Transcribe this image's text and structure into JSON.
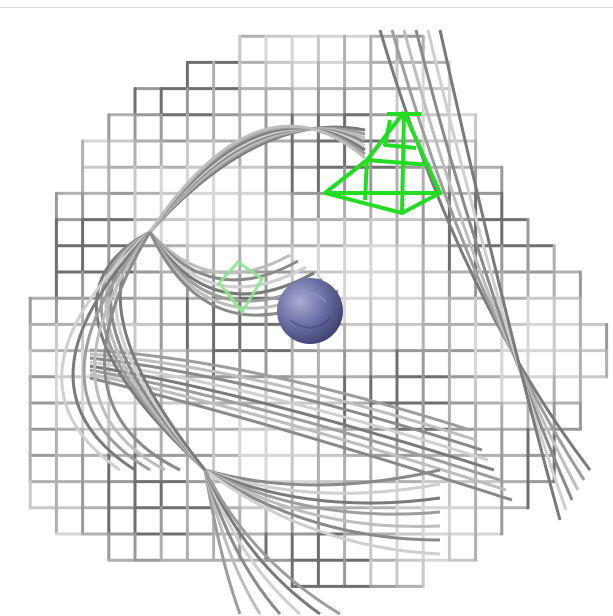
{
  "scene": {
    "background": "#ffffff",
    "mesh_dark": "#6f6f6f",
    "mesh_mid": "#9a9a9a",
    "mesh_light": "#c8c8c8",
    "marker_color": "#22dd22",
    "marker_faint_color": "#88e888",
    "sphere_color": "#5e6294",
    "sphere_highlight": "#a9acd3"
  }
}
